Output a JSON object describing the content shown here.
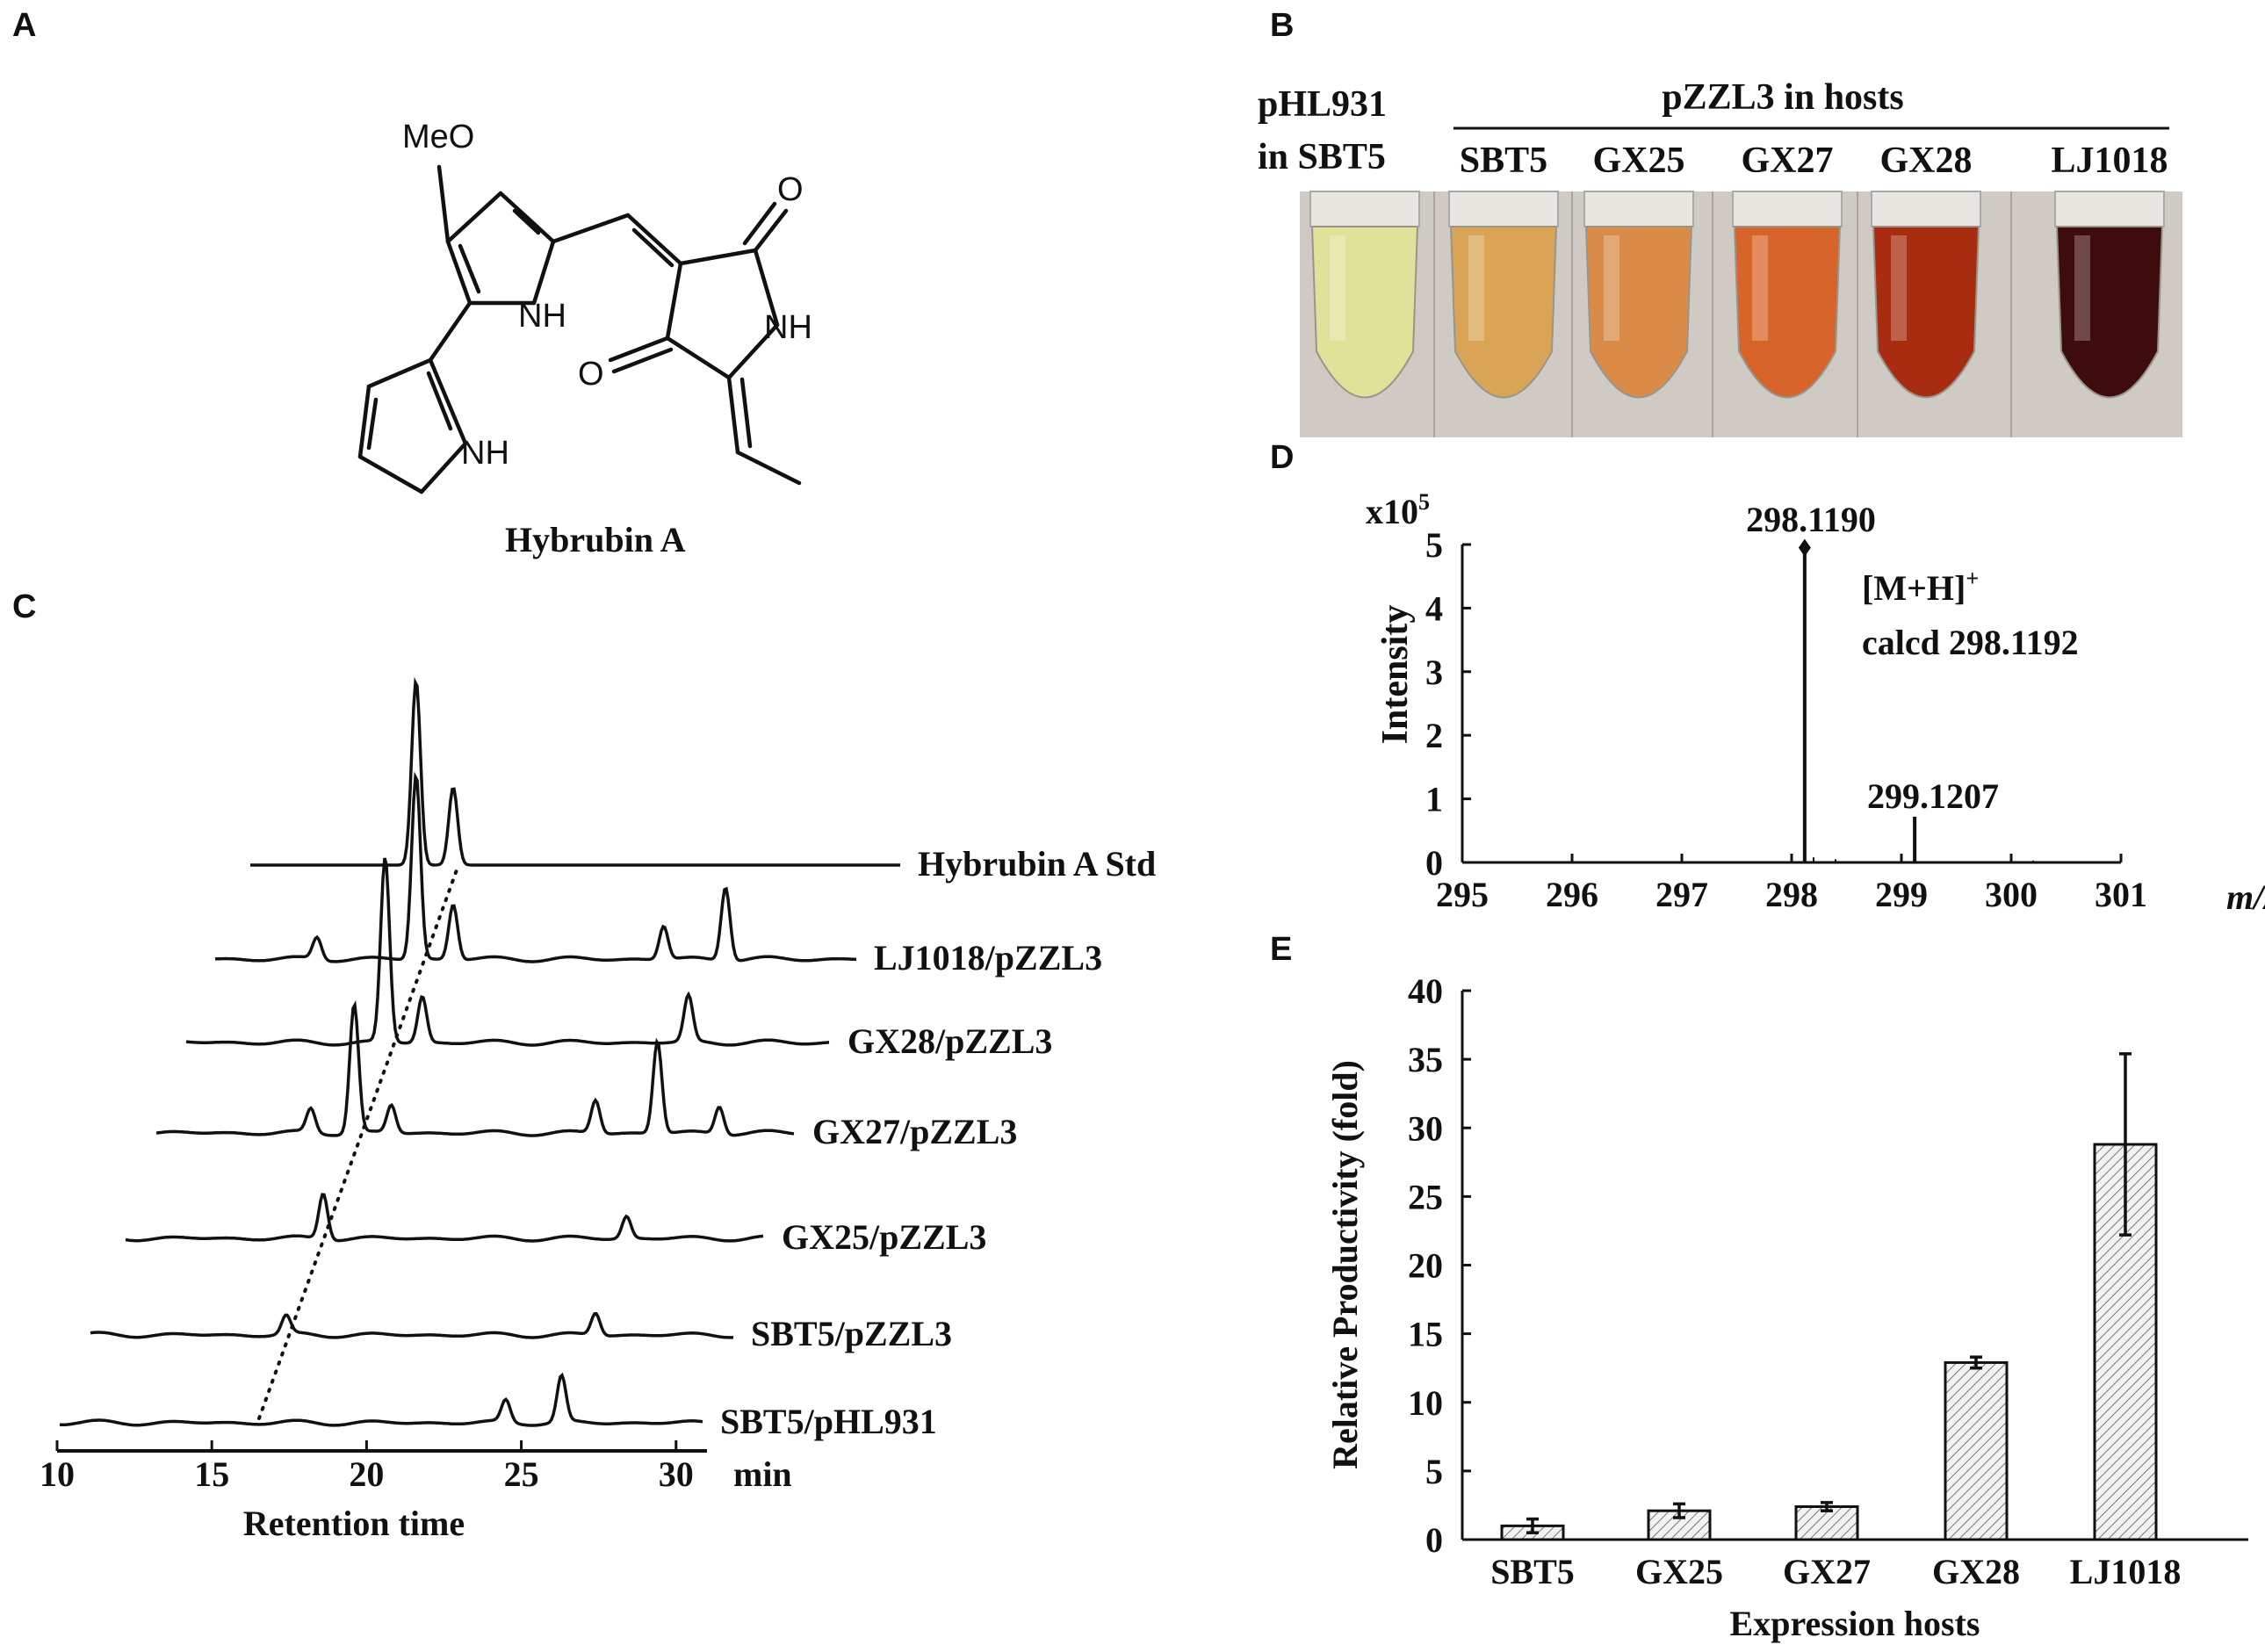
{
  "panels": {
    "a": "A",
    "b": "B",
    "c": "C",
    "d": "D",
    "e": "E"
  },
  "panel_a": {
    "compound_name": "Hybrubin A",
    "atom_labels": {
      "meo": "MeO",
      "nh1": "NH",
      "nh2": "NH",
      "nh3": "NH",
      "o1": "O",
      "o2": "O"
    }
  },
  "panel_b": {
    "control_label_line1": "pHL931",
    "control_label_line2": "in SBT5",
    "group_label": "pZZL3 in hosts",
    "hosts": [
      "SBT5",
      "GX25",
      "GX27",
      "GX28",
      "LJ1018"
    ],
    "tube_colors": [
      "#dfe39a",
      "#d9a455",
      "#d98b47",
      "#d7642a",
      "#a82c10",
      "#3e0c0c"
    ]
  },
  "panel_c": {
    "traces": [
      "Hybrubin A  Std",
      "LJ1018/pZZL3",
      "GX28/pZZL3",
      "GX27/pZZL3",
      "GX25/pZZL3",
      "SBT5/pZZL3",
      "SBT5/pHL931"
    ],
    "x_ticks": [
      "10",
      "15",
      "20",
      "25",
      "30"
    ],
    "x_unit": "min",
    "xlabel": "Retention time"
  },
  "panel_d": {
    "scale": "x10",
    "scale_exp": "5",
    "ylabel": "Intensity",
    "y_ticks": [
      "0",
      "1",
      "2",
      "3",
      "4",
      "5"
    ],
    "x_ticks": [
      "295",
      "296",
      "297",
      "298",
      "299",
      "300",
      "301"
    ],
    "xlabel": "m/z",
    "peak1_label": "298.1190",
    "peak2_label": "299.1207",
    "ion_label": "[M+H]",
    "ion_charge": "+",
    "calcd_label": "calcd 298.1192"
  },
  "chart_data": [
    {
      "type": "line",
      "panel": "C",
      "series": [
        {
          "name": "Hybrubin A  Std",
          "peaks": [
            {
              "x": 21.6,
              "y": 1.0
            },
            {
              "x": 22.8,
              "y": 0.42
            }
          ]
        },
        {
          "name": "LJ1018/pZZL3",
          "peaks": [
            {
              "x": 18.4,
              "y": 0.12
            },
            {
              "x": 21.6,
              "y": 1.0
            },
            {
              "x": 22.8,
              "y": 0.3
            },
            {
              "x": 29.6,
              "y": 0.18
            },
            {
              "x": 31.6,
              "y": 0.4
            }
          ]
        },
        {
          "name": "GX28/pZZL3",
          "peaks": [
            {
              "x": 20.6,
              "y": 1.0
            },
            {
              "x": 21.8,
              "y": 0.25
            },
            {
              "x": 30.4,
              "y": 0.25
            }
          ]
        },
        {
          "name": "GX27/pZZL3",
          "peaks": [
            {
              "x": 18.2,
              "y": 0.13
            },
            {
              "x": 19.6,
              "y": 0.7
            },
            {
              "x": 20.8,
              "y": 0.15
            },
            {
              "x": 27.4,
              "y": 0.18
            },
            {
              "x": 29.4,
              "y": 0.5
            },
            {
              "x": 31.4,
              "y": 0.15
            }
          ]
        },
        {
          "name": "GX25/pZZL3",
          "peaks": [
            {
              "x": 18.6,
              "y": 0.25
            },
            {
              "x": 28.4,
              "y": 0.12
            }
          ]
        },
        {
          "name": "SBT5/pZZL3",
          "peaks": [
            {
              "x": 17.4,
              "y": 0.1
            },
            {
              "x": 27.4,
              "y": 0.12
            }
          ]
        },
        {
          "name": "SBT5/pHL931",
          "peaks": [
            {
              "x": 24.5,
              "y": 0.12
            },
            {
              "x": 26.3,
              "y": 0.25
            }
          ]
        }
      ],
      "xlim": [
        10,
        31
      ]
    },
    {
      "type": "bar",
      "panel": "D",
      "x": [
        298.119,
        299.121,
        298.2,
        298.4,
        300.0,
        300.2
      ],
      "values": [
        4.95,
        0.72,
        0.08,
        0.05,
        0.04,
        0.03
      ],
      "xlim": [
        295,
        301
      ],
      "ylim": [
        0,
        5
      ]
    },
    {
      "type": "bar",
      "panel": "E",
      "categories": [
        "SBT5",
        "GX25",
        "GX27",
        "GX28",
        "LJ1018"
      ],
      "values": [
        1.0,
        2.1,
        2.4,
        12.9,
        28.8
      ],
      "errors": [
        0.5,
        0.5,
        0.3,
        0.4,
        6.6
      ],
      "xlabel": "Expression hosts",
      "ylabel": "Relative Productivity (fold)",
      "ylim": [
        0,
        40
      ],
      "y_ticks": [
        "0",
        "5",
        "10",
        "15",
        "20",
        "25",
        "30",
        "35",
        "40"
      ]
    }
  ]
}
